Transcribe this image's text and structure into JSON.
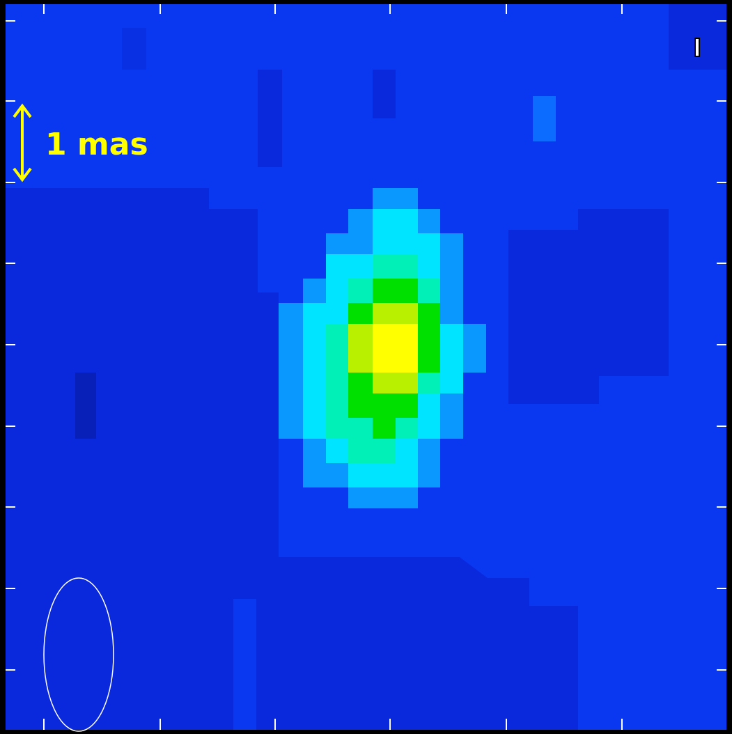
{
  "scale_label": "1 mas"
}
